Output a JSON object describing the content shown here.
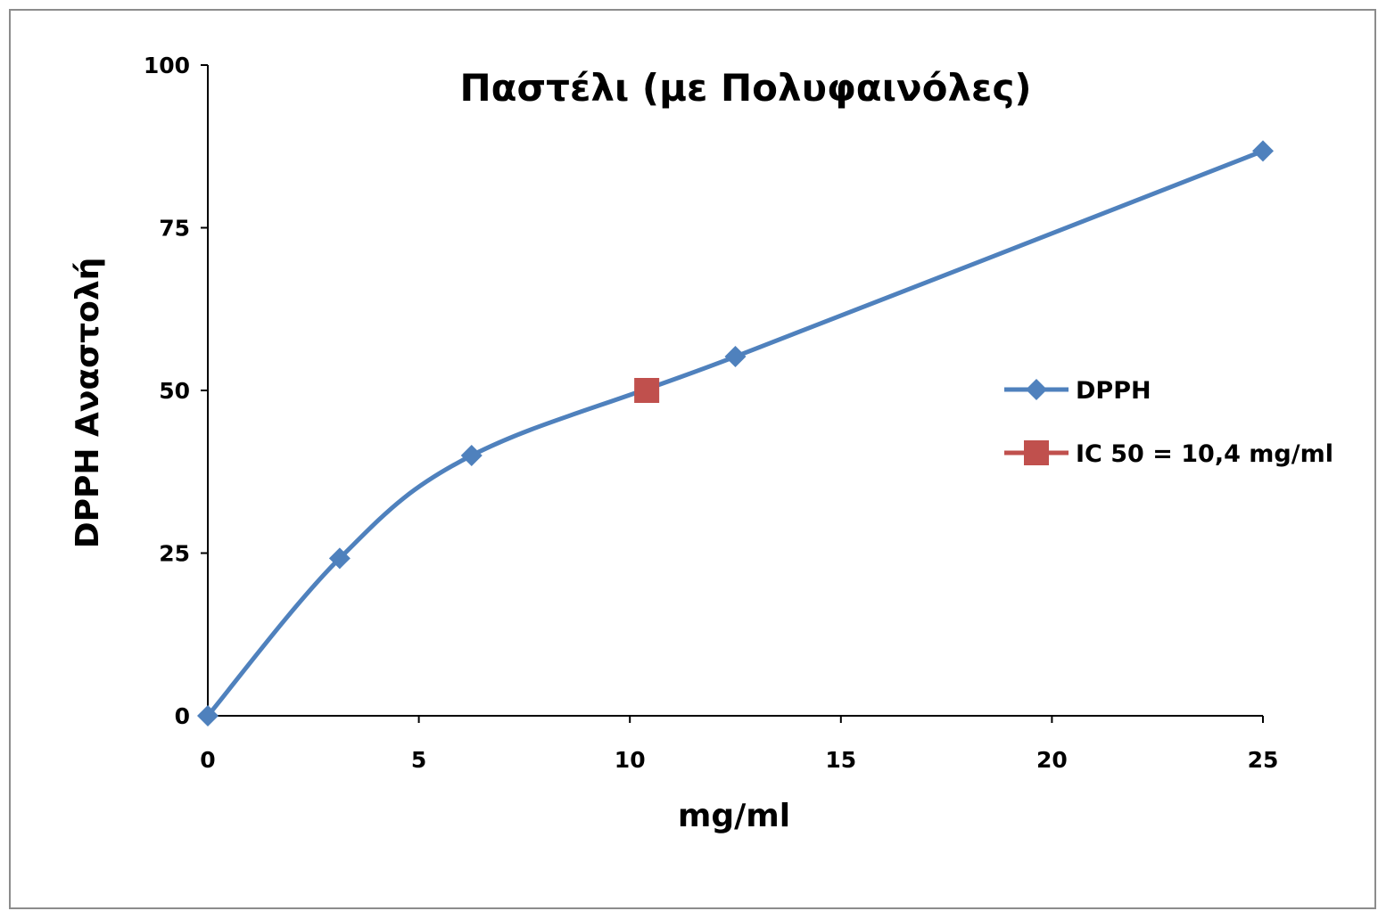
{
  "chart_data": {
    "type": "line",
    "title": "Παστέλι (με Πολυφαινόλες)",
    "xlabel": "mg/ml",
    "ylabel": "DPPH Αναστολή",
    "xlim": [
      0,
      25
    ],
    "ylim": [
      0,
      100
    ],
    "x_ticks": [
      0,
      5,
      10,
      15,
      20,
      25
    ],
    "y_ticks": [
      0,
      25,
      50,
      75,
      100
    ],
    "grid": false,
    "smooth": true,
    "legend_position": "right",
    "series": [
      {
        "name": "DPPH",
        "color": "#4F81BD",
        "marker": "diamond",
        "points": [
          {
            "x": 0,
            "y": 0
          },
          {
            "x": 3.125,
            "y": 24.2
          },
          {
            "x": 6.25,
            "y": 40.0
          },
          {
            "x": 12.5,
            "y": 55.2
          },
          {
            "x": 25,
            "y": 86.8
          }
        ]
      },
      {
        "name": "IC 50 = 10,4 mg/ml",
        "color": "#C0504D",
        "marker": "square",
        "points": [
          {
            "x": 10.4,
            "y": 50
          }
        ]
      }
    ]
  }
}
